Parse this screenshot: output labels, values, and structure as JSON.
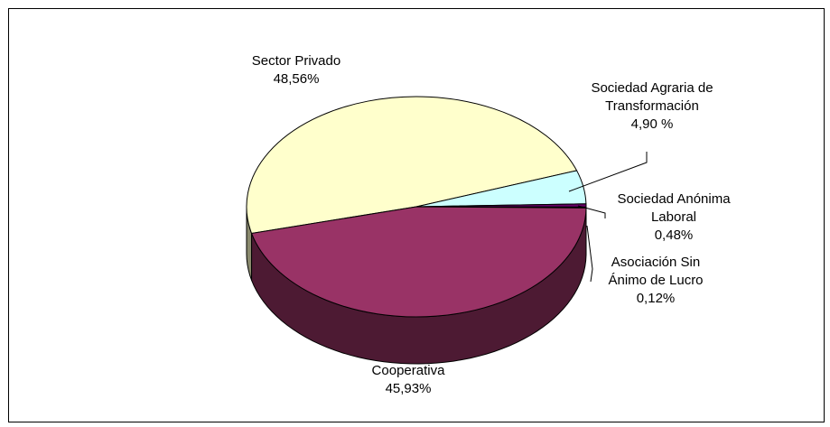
{
  "chart_data": {
    "type": "pie",
    "style": "3d",
    "colors_matter": true,
    "slices": [
      {
        "label_lines": [
          "Sector Privado"
        ],
        "value": 48.56,
        "value_text": "48,56%",
        "color": "#ffffcc",
        "side_color": "#8a8a6e"
      },
      {
        "label_lines": [
          "Sociedad Agraria de",
          "Transformación"
        ],
        "value": 4.9,
        "value_text": "4,90 %",
        "color": "#ccffff",
        "side_color": "#6e8a8a"
      },
      {
        "label_lines": [
          "Sociedad Anónima",
          "Laboral"
        ],
        "value": 0.48,
        "value_text": "0,48%",
        "color": "#660066",
        "side_color": "#330033"
      },
      {
        "label_lines": [
          "Asociación Sin",
          "Ánimo de Lucro"
        ],
        "value": 0.12,
        "value_text": "0,12%",
        "color": "#3333cc",
        "side_color": "#1a1a66"
      },
      {
        "label_lines": [
          "Cooperativa"
        ],
        "value": 45.93,
        "value_text": "45,93%",
        "color": "#993366",
        "side_color": "#4d1a33"
      }
    ],
    "legend": "none",
    "labels": "outside"
  }
}
